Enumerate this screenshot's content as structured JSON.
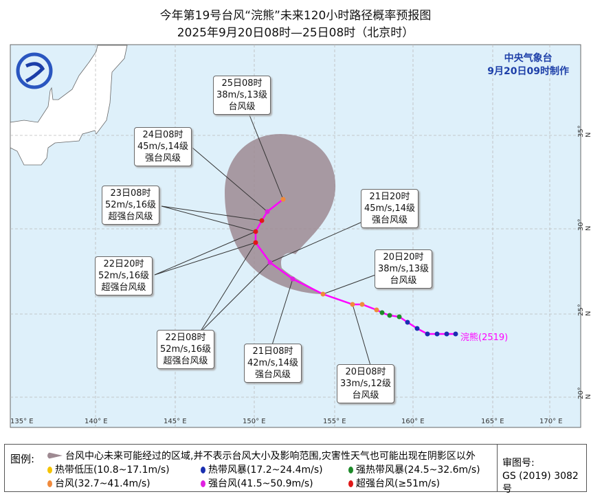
{
  "title": {
    "line1": "今年第19号台风“浣熊”未来120小时路径概率预报图",
    "line2": "2025年9月20日08时—25日08时（北京时）"
  },
  "agency": {
    "name": "中央气象台",
    "made": "9月20日09时制作"
  },
  "typhoon_label": "浣熊(2519)",
  "axes": {
    "lon": [
      "135° E",
      "140° E",
      "145° E",
      "150° E",
      "155° E",
      "160° E",
      "165° E",
      "170° E"
    ],
    "lat": [
      "35° N",
      "30° N",
      "25° N",
      "20° N"
    ]
  },
  "forecasts": [
    {
      "time": "25日08时",
      "wind": "38m/s,13级",
      "grade": "台风级"
    },
    {
      "time": "24日08时",
      "wind": "45m/s,14级",
      "grade": "强台风级"
    },
    {
      "time": "23日08时",
      "wind": "52m/s,16级",
      "grade": "超强台风级"
    },
    {
      "time": "22日20时",
      "wind": "52m/s,16级",
      "grade": "超强台风级"
    },
    {
      "time": "22日08时",
      "wind": "52m/s,16级",
      "grade": "超强台风级"
    },
    {
      "time": "21日08时",
      "wind": "42m/s,14级",
      "grade": "强台风级"
    },
    {
      "time": "21日20时",
      "wind": "45m/s,14级",
      "grade": "强台风级"
    },
    {
      "time": "20日20时",
      "wind": "38m/s,13级",
      "grade": "台风级"
    },
    {
      "time": "20日08时",
      "wind": "33m/s,12级",
      "grade": "台风级"
    }
  ],
  "colors": {
    "td": "#f5c400",
    "ts": "#1a2fb0",
    "sts": "#1e8a2a",
    "ty": "#f08a3c",
    "sty": "#e020e0",
    "super": "#e01818",
    "track": "#ff00ff",
    "cone": "#9e8a92",
    "sea": "#def0fa"
  },
  "legend": {
    "title": "图例:",
    "cone": "台风中心未来可能经过的区域,并不表示台风大小及影响范围,灾害性天气也可能出现在阴影区以外",
    "items": [
      "热带低压(10.8~17.1m/s)",
      "热带风暴(17.2~24.4m/s)",
      "强热带风暴(24.5~32.6m/s)",
      "台风(32.7~41.4m/s)",
      "强台风(41.5~50.9m/s)",
      "超强台风(≥51m/s)"
    ],
    "review_label": "审图号:",
    "review_no": "GS (2019) 3082号"
  }
}
